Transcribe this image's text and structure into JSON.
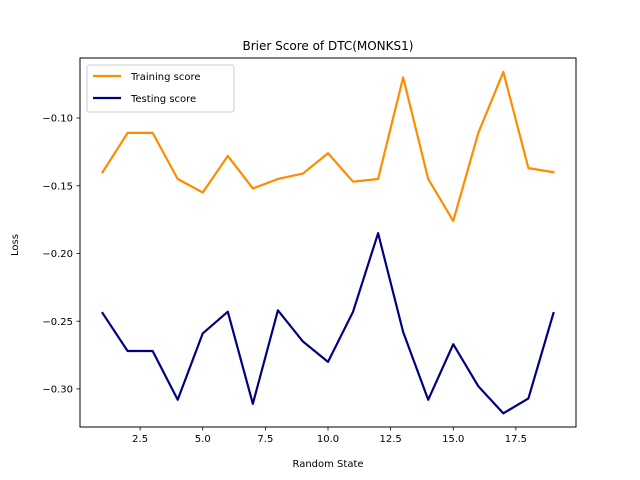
{
  "chart_data": {
    "type": "line",
    "title": "Brier Score of DTC(MONKS1)",
    "xlabel": "Random State",
    "ylabel": "Loss",
    "xlim": [
      0.1,
      19.9
    ],
    "ylim": [
      -0.3281,
      -0.0557
    ],
    "x": [
      1,
      2,
      3,
      4,
      5,
      6,
      7,
      8,
      9,
      10,
      11,
      12,
      13,
      14,
      15,
      16,
      17,
      18,
      19
    ],
    "xticks": [
      2.5,
      5.0,
      7.5,
      10.0,
      12.5,
      15.0,
      17.5
    ],
    "xtick_labels": [
      "2.5",
      "5.0",
      "7.5",
      "10.0",
      "12.5",
      "15.0",
      "17.5"
    ],
    "yticks": [
      -0.3,
      -0.25,
      -0.2,
      -0.15,
      -0.1
    ],
    "ytick_labels": [
      "−0.30",
      "−0.25",
      "−0.20",
      "−0.15",
      "−0.10"
    ],
    "grid": false,
    "legend_position": "top-left",
    "series": [
      {
        "name": "Training score",
        "color": "#ff8c00",
        "values": [
          -0.14,
          -0.111,
          -0.111,
          -0.145,
          -0.155,
          -0.128,
          -0.152,
          -0.145,
          -0.141,
          -0.126,
          -0.147,
          -0.145,
          -0.07,
          -0.145,
          -0.176,
          -0.111,
          -0.066,
          -0.137,
          -0.14
        ]
      },
      {
        "name": "Testing score",
        "color": "#000080",
        "values": [
          -0.244,
          -0.272,
          -0.272,
          -0.308,
          -0.259,
          -0.243,
          -0.311,
          -0.242,
          -0.265,
          -0.28,
          -0.243,
          -0.185,
          -0.258,
          -0.308,
          -0.267,
          -0.298,
          -0.318,
          -0.307,
          -0.244
        ]
      }
    ]
  }
}
